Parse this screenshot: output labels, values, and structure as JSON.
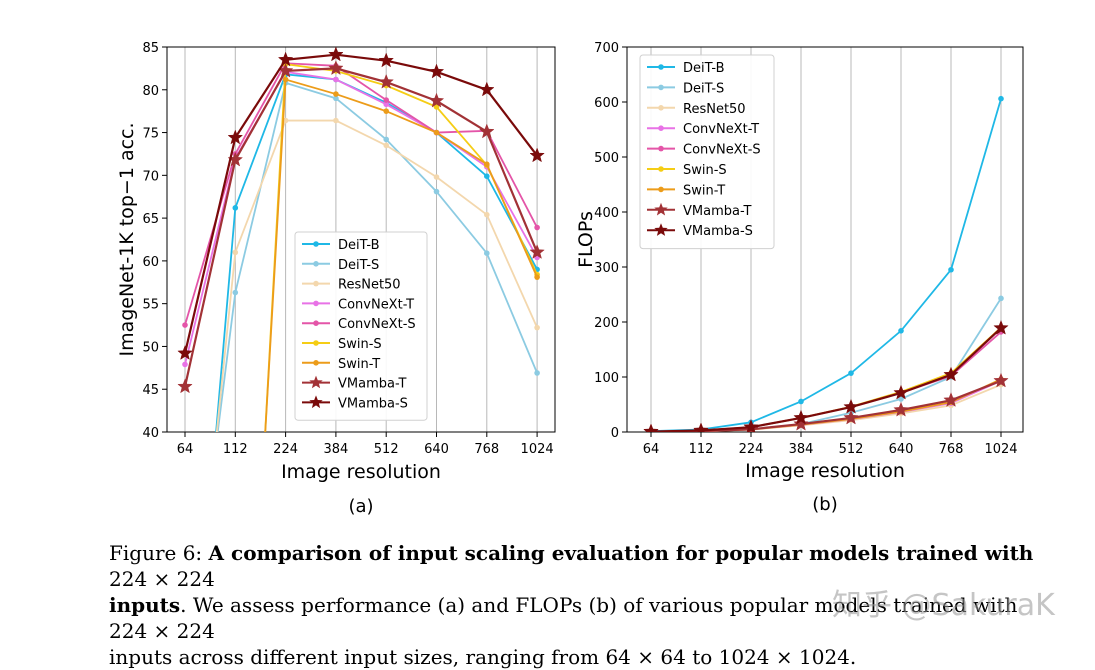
{
  "chart_data": [
    {
      "type": "line",
      "id": "a",
      "panel_label": "(a)",
      "title": "",
      "xlabel": "Image resolution",
      "ylabel": "ImageNet-1K top−1 acc.",
      "categories": [
        "64",
        "112",
        "224",
        "384",
        "512",
        "640",
        "768",
        "1024"
      ],
      "ylim": [
        40,
        85
      ],
      "yticks": [
        40,
        45,
        50,
        55,
        60,
        65,
        70,
        75,
        80,
        85
      ],
      "grid": "vertical",
      "legend_position": "lower-center",
      "series": [
        {
          "name": "DeiT-B",
          "color": "#1fb8e6",
          "marker": "dot",
          "values": [
            null,
            66.2,
            81.8,
            81.2,
            78.5,
            75.0,
            69.9,
            59.0
          ]
        },
        {
          "name": "DeiT-S",
          "color": "#8ccbe2",
          "marker": "dot",
          "values": [
            null,
            56.3,
            80.8,
            79.0,
            74.2,
            68.1,
            60.9,
            46.9
          ]
        },
        {
          "name": "ResNet50",
          "color": "#f3d7ad",
          "marker": "dot",
          "values": [
            null,
            61.0,
            76.4,
            76.4,
            73.5,
            69.8,
            65.4,
            52.2
          ]
        },
        {
          "name": "ConvNeXt-T",
          "color": "#e872e6",
          "marker": "dot",
          "values": [
            47.9,
            72.0,
            82.1,
            81.2,
            78.3,
            75.0,
            71.0,
            60.4
          ]
        },
        {
          "name": "ConvNeXt-S",
          "color": "#e455a8",
          "marker": "dot",
          "values": [
            52.5,
            72.5,
            83.1,
            82.8,
            78.8,
            75.0,
            75.2,
            63.9
          ]
        },
        {
          "name": "Swin-S",
          "color": "#f5cd15",
          "marker": "dot",
          "values": [
            null,
            null,
            83.0,
            82.2,
            80.5,
            78.0,
            71.2,
            58.4
          ]
        },
        {
          "name": "Swin-T",
          "color": "#ec9c1a",
          "marker": "dot",
          "values": [
            null,
            null,
            81.2,
            79.5,
            77.5,
            75.0,
            71.3,
            58.1
          ]
        },
        {
          "name": "VMamba-T",
          "color": "#a23236",
          "marker": "star",
          "values": [
            45.3,
            71.8,
            82.2,
            82.5,
            80.9,
            78.7,
            75.1,
            61.0
          ]
        },
        {
          "name": "VMamba-S",
          "color": "#7a0a0a",
          "marker": "star",
          "values": [
            49.2,
            74.4,
            83.5,
            84.1,
            83.4,
            82.1,
            80.0,
            72.3
          ]
        }
      ]
    },
    {
      "type": "line",
      "id": "b",
      "panel_label": "(b)",
      "title": "",
      "xlabel": "Image resolution",
      "ylabel": "FLOPs",
      "categories": [
        "64",
        "112",
        "224",
        "384",
        "512",
        "640",
        "768",
        "1024"
      ],
      "ylim": [
        0,
        700
      ],
      "yticks": [
        0,
        100,
        200,
        300,
        400,
        500,
        600,
        700
      ],
      "grid": "vertical",
      "legend_position": "top-left",
      "series": [
        {
          "name": "DeiT-B",
          "color": "#1fb8e6",
          "marker": "dot",
          "values": [
            1.5,
            4.6,
            17.6,
            55.5,
            107,
            184,
            295,
            606
          ]
        },
        {
          "name": "DeiT-S",
          "color": "#8ccbe2",
          "marker": "dot",
          "values": [
            0.4,
            1.4,
            4.6,
            14.4,
            35,
            60,
            100,
            243
          ]
        },
        {
          "name": "ResNet50",
          "color": "#f3d7ad",
          "marker": "dot",
          "values": [
            0.3,
            1.0,
            4.1,
            12.1,
            21.5,
            33.6,
            48.4,
            86
          ]
        },
        {
          "name": "ConvNeXt-T",
          "color": "#e872e6",
          "marker": "dot",
          "values": [
            0.4,
            1.4,
            4.5,
            13.1,
            23.3,
            36.4,
            52.4,
            93
          ]
        },
        {
          "name": "ConvNeXt-S",
          "color": "#e455a8",
          "marker": "dot",
          "values": [
            0.7,
            2.7,
            8.7,
            25.6,
            45.4,
            71,
            102,
            182
          ]
        },
        {
          "name": "Swin-S",
          "color": "#f5cd15",
          "marker": "dot",
          "values": [
            0.7,
            2.7,
            8.7,
            25.7,
            46,
            73,
            107,
            190
          ]
        },
        {
          "name": "Swin-T",
          "color": "#ec9c1a",
          "marker": "dot",
          "values": [
            0.4,
            1.4,
            4.5,
            13.2,
            23.6,
            37,
            54,
            96
          ]
        },
        {
          "name": "VMamba-T",
          "color": "#a23236",
          "marker": "star",
          "values": [
            0.4,
            1.5,
            4.9,
            14.4,
            25.6,
            40,
            57.6,
            93
          ]
        },
        {
          "name": "VMamba-S",
          "color": "#7a0a0a",
          "marker": "star",
          "values": [
            0.7,
            2.7,
            8.7,
            25.6,
            45.4,
            71,
            104,
            189
          ]
        }
      ]
    }
  ],
  "caption": {
    "figure": "Figure 6:",
    "bold": "A comparison of input scaling evaluation for popular models trained with",
    "bold_tail": "inputs",
    "size_224": "224 × 224",
    "line2_rest": ". We assess performance (a) and FLOPs (b) of various popular models trained with",
    "line3_pre": "inputs across different input sizes, ranging from",
    "size_64": "64 × 64",
    "to": "to",
    "size_1024": "1024 × 1024."
  },
  "watermark": "知乎 @SakuraK"
}
